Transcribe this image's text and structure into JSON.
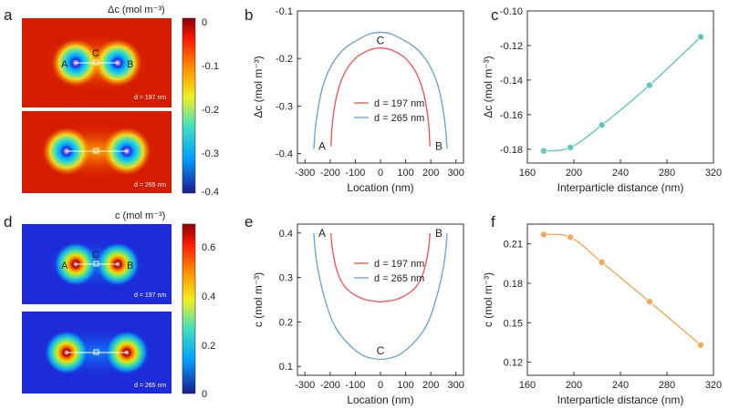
{
  "colors": {
    "red_line": "#ef5a5a",
    "blue_line": "#6fa6d6",
    "teal": "#5ec7c0",
    "orange": "#f5a85a",
    "axis": "#333333",
    "map_marker": "#ffffff"
  },
  "panels": {
    "a": {
      "letter": "a",
      "title": "Δc (mol m⁻³)",
      "colorbar_ticks": [
        "0",
        "-0.1",
        "-0.2",
        "-0.3",
        "-0.4"
      ],
      "maps": [
        {
          "d_label": "d = 197 nm",
          "points": [
            "A",
            "C",
            "B"
          ]
        },
        {
          "d_label": "d = 265 nm",
          "points": []
        }
      ]
    },
    "d": {
      "letter": "d",
      "title": "c (mol m⁻³)",
      "colorbar_ticks": [
        "0.6",
        "0.4",
        "0.2",
        "0"
      ],
      "maps": [
        {
          "d_label": "d = 197 nm",
          "points": [
            "A",
            "C",
            "B"
          ]
        },
        {
          "d_label": "d = 265 nm",
          "points": []
        }
      ]
    }
  },
  "chart_data": [
    {
      "panel": "b",
      "type": "line",
      "title": "",
      "xlabel": "Location (nm)",
      "ylabel": "Δc (mol m⁻³)",
      "xlim": [
        -330,
        330
      ],
      "ylim": [
        -0.42,
        -0.1
      ],
      "xticks": [
        "-300",
        "-200",
        "-100",
        "0",
        "100",
        "200",
        "300"
      ],
      "yticks": [
        "-0.1",
        "-0.2",
        "-0.3",
        "-0.4"
      ],
      "legend": "center",
      "series": [
        {
          "name": "d = 197 nm",
          "color_key": "red_line",
          "x": [
            -197,
            -190,
            -170,
            -140,
            -100,
            -60,
            -30,
            0,
            30,
            60,
            100,
            140,
            170,
            190,
            197
          ],
          "y": [
            -0.385,
            -0.33,
            -0.27,
            -0.228,
            -0.2,
            -0.186,
            -0.18,
            -0.178,
            -0.18,
            -0.186,
            -0.2,
            -0.228,
            -0.27,
            -0.33,
            -0.385
          ]
        },
        {
          "name": "d = 265 nm",
          "color_key": "blue_line",
          "x": [
            -265,
            -255,
            -230,
            -190,
            -140,
            -80,
            -40,
            0,
            40,
            80,
            140,
            190,
            230,
            255,
            265
          ],
          "y": [
            -0.39,
            -0.33,
            -0.26,
            -0.21,
            -0.178,
            -0.158,
            -0.148,
            -0.145,
            -0.148,
            -0.158,
            -0.178,
            -0.21,
            -0.26,
            -0.33,
            -0.39
          ]
        }
      ],
      "annotations": [
        {
          "text": "A",
          "x": -232,
          "y": -0.385
        },
        {
          "text": "B",
          "x": 232,
          "y": -0.385
        },
        {
          "text": "C",
          "x": 0,
          "y": -0.162
        }
      ]
    },
    {
      "panel": "c",
      "type": "line",
      "title": "",
      "xlabel": "Interparticle distance (nm)",
      "ylabel": "Δc (mol m⁻³)",
      "xlim": [
        160,
        320
      ],
      "ylim": [
        -0.188,
        -0.1
      ],
      "xticks": [
        "160",
        "200",
        "240",
        "280",
        "320"
      ],
      "yticks": [
        "-0.10",
        "-0.12",
        "-0.14",
        "-0.16",
        "-0.18"
      ],
      "series": [
        {
          "name": "Δc",
          "color_key": "teal",
          "x": [
            174,
            197,
            224,
            265,
            309
          ],
          "y": [
            -0.181,
            -0.179,
            -0.166,
            -0.143,
            -0.115
          ]
        }
      ]
    },
    {
      "panel": "e",
      "type": "line",
      "title": "",
      "xlabel": "Location (nm)",
      "ylabel": "c (mol m⁻³)",
      "xlim": [
        -330,
        330
      ],
      "ylim": [
        0.08,
        0.42
      ],
      "xticks": [
        "-300",
        "-200",
        "-100",
        "0",
        "100",
        "200",
        "300"
      ],
      "yticks": [
        "0.4",
        "0.3",
        "0.2",
        "0.1"
      ],
      "legend": "center",
      "series": [
        {
          "name": "d = 197 nm",
          "color_key": "red_line",
          "x": [
            -197,
            -190,
            -170,
            -140,
            -100,
            -60,
            -30,
            0,
            30,
            60,
            100,
            140,
            170,
            190,
            197
          ],
          "y": [
            0.4,
            0.36,
            0.31,
            0.278,
            0.26,
            0.25,
            0.247,
            0.245,
            0.247,
            0.25,
            0.26,
            0.278,
            0.31,
            0.36,
            0.4
          ]
        },
        {
          "name": "d = 265 nm",
          "color_key": "blue_line",
          "x": [
            -265,
            -255,
            -230,
            -190,
            -140,
            -80,
            -40,
            0,
            40,
            80,
            140,
            190,
            230,
            255,
            265
          ],
          "y": [
            0.4,
            0.34,
            0.27,
            0.2,
            0.158,
            0.128,
            0.119,
            0.116,
            0.119,
            0.128,
            0.158,
            0.2,
            0.27,
            0.34,
            0.4
          ]
        }
      ],
      "annotations": [
        {
          "text": "A",
          "x": -232,
          "y": 0.4
        },
        {
          "text": "B",
          "x": 232,
          "y": 0.4
        },
        {
          "text": "C",
          "x": 0,
          "y": 0.135
        }
      ]
    },
    {
      "panel": "f",
      "type": "line",
      "title": "",
      "xlabel": "Interparticle distance (nm)",
      "ylabel": "c (mol m⁻³)",
      "xlim": [
        160,
        320
      ],
      "ylim": [
        0.11,
        0.225
      ],
      "xticks": [
        "160",
        "200",
        "240",
        "280",
        "320"
      ],
      "yticks": [
        "0.21",
        "0.18",
        "0.15",
        "0.12"
      ],
      "series": [
        {
          "name": "c",
          "color_key": "orange",
          "x": [
            174,
            197,
            224,
            265,
            309
          ],
          "y": [
            0.217,
            0.215,
            0.196,
            0.166,
            0.133
          ]
        }
      ]
    }
  ]
}
